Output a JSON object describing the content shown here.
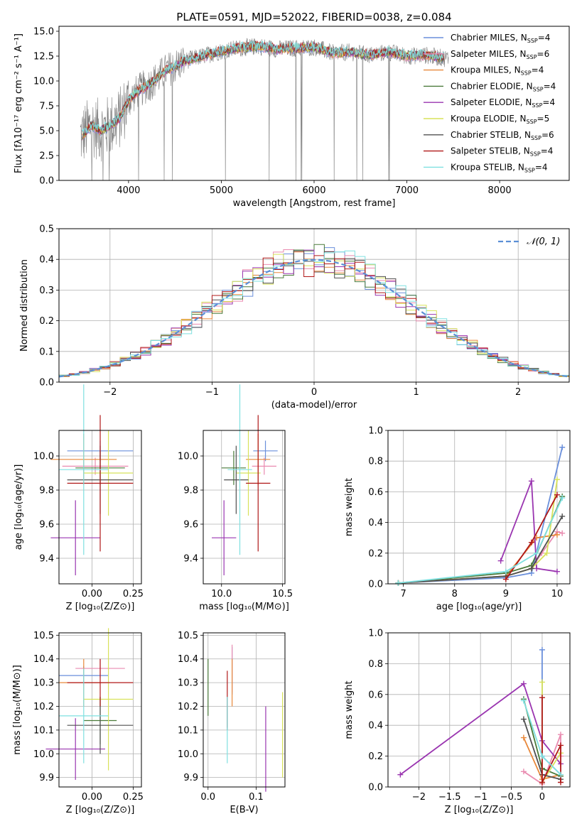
{
  "figure": {
    "title": "PLATE=0591, MJD=52022, FIBERID=0038, z=0.084"
  },
  "colors": {
    "Chabrier MILES": "#6a8fdb",
    "Salpeter MILES": "#e98bb0",
    "Kroupa MILES": "#e8883a",
    "Chabrier ELODIE": "#4a7a3a",
    "Salpeter ELODIE": "#9a35b0",
    "Kroupa ELODIE": "#d8e25a",
    "Chabrier STELIB": "#505050",
    "Salpeter STELIB": "#b01818",
    "Kroupa STELIB": "#7fe0e0",
    "spectrum_grey": "#808080",
    "grid": "#b0b0b0",
    "normal_curve": "#5b8fd6"
  },
  "models": [
    "Chabrier MILES",
    "Salpeter MILES",
    "Kroupa MILES",
    "Chabrier ELODIE",
    "Salpeter ELODIE",
    "Kroupa ELODIE",
    "Chabrier STELIB",
    "Salpeter STELIB",
    "Kroupa STELIB"
  ],
  "chart_data": [
    {
      "id": "spectrum",
      "type": "line",
      "xlabel": "wavelength [Angstrom, rest frame]",
      "ylabel": "Flux [fλ10⁻¹⁷ erg cm⁻² s⁻¹ A⁻¹]",
      "xlim": [
        3250,
        8750
      ],
      "ylim": [
        0,
        15.5
      ],
      "xticks": [
        4000,
        5000,
        6000,
        7000,
        8000
      ],
      "yticks": [
        0.0,
        2.5,
        5.0,
        7.5,
        10.0,
        12.5,
        15.0
      ],
      "grid": false,
      "legend_position": "right",
      "legend": [
        {
          "label": "Chabrier MILES, N",
          "sub": "SSP",
          "tail": "=4"
        },
        {
          "label": "Salpeter MILES, N",
          "sub": "SSP",
          "tail": "=6"
        },
        {
          "label": "Kroupa MILES, N",
          "sub": "SSP",
          "tail": "=4"
        },
        {
          "label": "Chabrier ELODIE, N",
          "sub": "SSP",
          "tail": "=4"
        },
        {
          "label": "Salpeter ELODIE, N",
          "sub": "SSP",
          "tail": "=4"
        },
        {
          "label": "Kroupa ELODIE, N",
          "sub": "SSP",
          "tail": "=5"
        },
        {
          "label": "Chabrier STELIB, N",
          "sub": "SSP",
          "tail": "=6"
        },
        {
          "label": "Salpeter STELIB, N",
          "sub": "SSP",
          "tail": "=4"
        },
        {
          "label": "Kroupa STELIB, N",
          "sub": "SSP",
          "tail": "=4"
        }
      ],
      "continuum": {
        "x": [
          3500,
          3600,
          3700,
          3800,
          3900,
          4000,
          4100,
          4200,
          4300,
          4400,
          4500,
          4600,
          4800,
          5000,
          5200,
          5400,
          5600,
          5800,
          6000,
          6200,
          6400,
          6600,
          6800,
          7000,
          7200,
          7400
        ],
        "y": [
          4.5,
          5.5,
          5.0,
          5.5,
          6.2,
          8.0,
          9.0,
          9.5,
          10.2,
          11.0,
          11.5,
          12.0,
          12.5,
          13.0,
          13.3,
          13.5,
          13.2,
          13.3,
          13.4,
          12.8,
          12.9,
          12.6,
          12.9,
          12.5,
          12.6,
          12.3
        ]
      },
      "model_range": [
        3500,
        7400
      ],
      "noise_range": [
        3480,
        7450
      ]
    },
    {
      "id": "residuals",
      "type": "step-histogram",
      "xlabel": "(data-model)/error",
      "ylabel": "Normed distribution",
      "xlim": [
        -2.5,
        2.5
      ],
      "ylim": [
        0,
        0.5
      ],
      "xticks": [
        -2,
        -1,
        0,
        1,
        2
      ],
      "yticks": [
        0.0,
        0.1,
        0.2,
        0.3,
        0.4,
        0.5
      ],
      "grid": true,
      "bin_edges_range": [
        -2.5,
        2.5
      ],
      "bin_count": 50,
      "reference": {
        "label": "N(0,1)",
        "mu": 0,
        "sigma": 1
      },
      "legend_position": "top-right"
    },
    {
      "id": "age-vs-z",
      "type": "scatter-errorbar",
      "xlabel": "Z [log₁₀(Z/Z⊙)]",
      "ylabel": "age  [log₁₀(age/yr)]",
      "xlim": [
        -0.2,
        0.3
      ],
      "ylim": [
        9.25,
        10.15
      ],
      "xticks": [
        0.0,
        0.25
      ],
      "xticklabels": [
        "0.00",
        "0.25"
      ],
      "yticks": [
        9.4,
        9.6,
        9.8,
        10.0
      ],
      "points": [
        {
          "model": "Chabrier MILES",
          "x": 0.05,
          "xerr": 0.2,
          "y": 10.03,
          "yerr": 0.06
        },
        {
          "model": "Salpeter MILES",
          "x": 0.02,
          "xerr": 0.2,
          "y": 9.94,
          "yerr": 0.05
        },
        {
          "model": "Kroupa MILES",
          "x": -0.05,
          "xerr": 0.2,
          "y": 9.98,
          "yerr": 0.15
        },
        {
          "model": "Chabrier ELODIE",
          "x": 0.05,
          "xerr": 0.15,
          "y": 9.93,
          "yerr": 0.1
        },
        {
          "model": "Salpeter ELODIE",
          "x": -0.1,
          "xerr": 0.15,
          "y": 9.52,
          "yerr": 0.22
        },
        {
          "model": "Kroupa ELODIE",
          "x": 0.1,
          "xerr": 0.15,
          "y": 9.9,
          "yerr": 0.25
        },
        {
          "model": "Chabrier STELIB",
          "x": 0.05,
          "xerr": 0.2,
          "y": 9.86,
          "yerr": 0.2
        },
        {
          "model": "Salpeter STELIB",
          "x": 0.05,
          "xerr": 0.2,
          "y": 9.84,
          "yerr": 0.4
        },
        {
          "model": "Kroupa STELIB",
          "x": -0.05,
          "xerr": 0.15,
          "y": 9.92,
          "yerr": 0.5
        }
      ]
    },
    {
      "id": "age-vs-mass",
      "type": "scatter-errorbar",
      "xlabel": "mass [log₁₀(M/M⊙)]",
      "ylabel": "",
      "xlim": [
        9.85,
        10.52
      ],
      "ylim": [
        9.25,
        10.15
      ],
      "xticks": [
        10.0,
        10.5
      ],
      "xticklabels": [
        "10.0",
        "10.5"
      ],
      "yticks": [
        9.4,
        9.6,
        9.8,
        10.0
      ],
      "points": [
        {
          "model": "Chabrier MILES",
          "x": 10.36,
          "xerr": 0.1,
          "y": 10.03,
          "yerr": 0.06
        },
        {
          "model": "Salpeter MILES",
          "x": 10.35,
          "xerr": 0.1,
          "y": 9.94,
          "yerr": 0.05
        },
        {
          "model": "Kroupa MILES",
          "x": 10.3,
          "xerr": 0.1,
          "y": 9.98,
          "yerr": 0.15
        },
        {
          "model": "Chabrier ELODIE",
          "x": 10.1,
          "xerr": 0.1,
          "y": 9.93,
          "yerr": 0.1
        },
        {
          "model": "Salpeter ELODIE",
          "x": 10.02,
          "xerr": 0.1,
          "y": 9.52,
          "yerr": 0.22
        },
        {
          "model": "Kroupa ELODIE",
          "x": 10.22,
          "xerr": 0.1,
          "y": 9.9,
          "yerr": 0.25
        },
        {
          "model": "Chabrier STELIB",
          "x": 10.12,
          "xerr": 0.1,
          "y": 9.86,
          "yerr": 0.2
        },
        {
          "model": "Salpeter STELIB",
          "x": 10.3,
          "xerr": 0.1,
          "y": 9.84,
          "yerr": 0.4
        },
        {
          "model": "Kroupa STELIB",
          "x": 10.15,
          "xerr": 0.1,
          "y": 9.92,
          "yerr": 0.5
        }
      ]
    },
    {
      "id": "weight-vs-age",
      "type": "line",
      "xlabel": "age  [log₁₀(age/yr)]",
      "ylabel": "mass weight",
      "xlim": [
        6.7,
        10.25
      ],
      "ylim": [
        0,
        1.0
      ],
      "xticks": [
        7,
        8,
        9,
        10
      ],
      "yticks": [
        0.0,
        0.2,
        0.4,
        0.6,
        0.8,
        1.0
      ],
      "grid": true,
      "series": [
        {
          "model": "Chabrier MILES",
          "x": [
            6.9,
            9.0,
            9.5,
            10.1
          ],
          "y": [
            0.005,
            0.04,
            0.07,
            0.89
          ]
        },
        {
          "model": "Salpeter MILES",
          "x": [
            6.9,
            9.0,
            9.5,
            9.7,
            10.0,
            10.1
          ],
          "y": [
            0.005,
            0.05,
            0.1,
            0.2,
            0.34,
            0.33
          ]
        },
        {
          "model": "Kroupa MILES",
          "x": [
            6.9,
            9.0,
            9.6,
            10.0
          ],
          "y": [
            0.005,
            0.05,
            0.3,
            0.32
          ]
        },
        {
          "model": "Chabrier ELODIE",
          "x": [
            6.9,
            9.0,
            9.5,
            10.1
          ],
          "y": [
            0.005,
            0.07,
            0.12,
            0.57
          ]
        },
        {
          "model": "Salpeter ELODIE",
          "x": [
            8.9,
            9.5,
            9.6,
            10.0
          ],
          "y": [
            0.15,
            0.67,
            0.1,
            0.08
          ]
        },
        {
          "model": "Kroupa ELODIE",
          "x": [
            6.9,
            9.0,
            9.5,
            9.8,
            10.0
          ],
          "y": [
            0.005,
            0.05,
            0.1,
            0.2,
            0.68
          ]
        },
        {
          "model": "Chabrier STELIB",
          "x": [
            6.9,
            9.0,
            9.5,
            10.1
          ],
          "y": [
            0.005,
            0.05,
            0.1,
            0.44
          ]
        },
        {
          "model": "Salpeter STELIB",
          "x": [
            9.0,
            9.5,
            10.0
          ],
          "y": [
            0.03,
            0.27,
            0.58
          ]
        },
        {
          "model": "Kroupa STELIB",
          "x": [
            6.9,
            9.0,
            9.6,
            10.1
          ],
          "y": [
            0.005,
            0.08,
            0.2,
            0.56
          ]
        }
      ]
    },
    {
      "id": "mass-vs-z",
      "type": "scatter-errorbar",
      "xlabel": "Z [log₁₀(Z/Z⊙)]",
      "ylabel": "mass [log₁₀(M/M⊙)]",
      "xlim": [
        -0.2,
        0.3
      ],
      "ylim": [
        9.86,
        10.51
      ],
      "xticks": [
        0.0,
        0.25
      ],
      "xticklabels": [
        "0.00",
        "0.25"
      ],
      "yticks": [
        9.9,
        10.0,
        10.1,
        10.2,
        10.3,
        10.4,
        10.5
      ],
      "points": [
        {
          "model": "Chabrier MILES",
          "x": -0.05,
          "xerr": 0.15,
          "y": 10.33,
          "yerr": 0.04
        },
        {
          "model": "Salpeter MILES",
          "x": 0.05,
          "xerr": 0.15,
          "y": 10.36,
          "yerr": 0.04
        },
        {
          "model": "Kroupa MILES",
          "x": -0.05,
          "xerr": 0.15,
          "y": 10.3,
          "yerr": 0.1
        },
        {
          "model": "Chabrier ELODIE",
          "x": 0.05,
          "xerr": 0.1,
          "y": 10.14,
          "yerr": 0.1
        },
        {
          "model": "Salpeter ELODIE",
          "x": -0.1,
          "xerr": 0.18,
          "y": 10.02,
          "yerr": 0.13
        },
        {
          "model": "Kroupa ELODIE",
          "x": 0.1,
          "xerr": 0.15,
          "y": 10.23,
          "yerr": 0.3
        },
        {
          "model": "Chabrier STELIB",
          "x": 0.05,
          "xerr": 0.2,
          "y": 10.12,
          "yerr": 0.12
        },
        {
          "model": "Salpeter STELIB",
          "x": 0.05,
          "xerr": 0.2,
          "y": 10.3,
          "yerr": 0.1
        },
        {
          "model": "Kroupa STELIB",
          "x": -0.05,
          "xerr": 0.15,
          "y": 10.16,
          "yerr": 0.2
        }
      ]
    },
    {
      "id": "mass-vs-ebv",
      "type": "scatter-errorbar",
      "xlabel": "E(B-V)",
      "ylabel": "",
      "xlim": [
        -0.01,
        0.16
      ],
      "ylim": [
        9.86,
        10.51
      ],
      "xticks": [
        0.0,
        0.1
      ],
      "xticklabels": [
        "0.0",
        "0.1"
      ],
      "yticks": [
        9.9,
        10.0,
        10.1,
        10.2,
        10.3,
        10.4,
        10.5
      ],
      "points": [
        {
          "model": "Chabrier MILES",
          "x": 0.05,
          "xerr": 0,
          "y": 10.35,
          "yerr": 0.1
        },
        {
          "model": "Salpeter MILES",
          "x": 0.05,
          "xerr": 0,
          "y": 10.36,
          "yerr": 0.1
        },
        {
          "model": "Kroupa MILES",
          "x": 0.05,
          "xerr": 0,
          "y": 10.3,
          "yerr": 0.1
        },
        {
          "model": "Chabrier ELODIE",
          "x": 0.0,
          "xerr": 0,
          "y": 10.28,
          "yerr": 0.12
        },
        {
          "model": "Salpeter ELODIE",
          "x": 0.12,
          "xerr": 0,
          "y": 10.02,
          "yerr": 0.18
        },
        {
          "model": "Kroupa ELODIE",
          "x": 0.155,
          "xerr": 0,
          "y": 10.08,
          "yerr": 0.18
        },
        {
          "model": "Chabrier STELIB",
          "x": 0.04,
          "xerr": 0,
          "y": 10.17,
          "yerr": 0.07
        },
        {
          "model": "Salpeter STELIB",
          "x": 0.04,
          "xerr": 0,
          "y": 10.23,
          "yerr": 0.12
        },
        {
          "model": "Kroupa STELIB",
          "x": 0.04,
          "xerr": 0,
          "y": 10.1,
          "yerr": 0.14
        }
      ]
    },
    {
      "id": "weight-vs-z",
      "type": "line",
      "xlabel": "Z [log₁₀(Z/Z⊙)]",
      "ylabel": "mass weight",
      "xlim": [
        -2.5,
        0.45
      ],
      "ylim": [
        0,
        1.0
      ],
      "xticks": [
        -2.0,
        -1.5,
        -1.0,
        -0.5,
        0.0
      ],
      "yticks": [
        0.0,
        0.2,
        0.4,
        0.6,
        0.8,
        1.0
      ],
      "grid": true,
      "series": [
        {
          "model": "Chabrier MILES",
          "x": [
            0.0,
            0.0,
            0.3
          ],
          "y": [
            0.89,
            0.2,
            0.08
          ]
        },
        {
          "model": "Salpeter MILES",
          "x": [
            -0.3,
            0.0,
            0.3,
            0.3
          ],
          "y": [
            0.1,
            0.02,
            0.34,
            0.2
          ]
        },
        {
          "model": "Kroupa MILES",
          "x": [
            -0.3,
            0.0,
            0.3
          ],
          "y": [
            0.32,
            0.05,
            0.08
          ]
        },
        {
          "model": "Chabrier ELODIE",
          "x": [
            -0.3,
            0.0,
            0.3
          ],
          "y": [
            0.57,
            0.12,
            0.07
          ]
        },
        {
          "model": "Salpeter ELODIE",
          "x": [
            -2.3,
            -0.3,
            0.0,
            0.3
          ],
          "y": [
            0.08,
            0.67,
            0.3,
            0.15
          ]
        },
        {
          "model": "Kroupa ELODIE",
          "x": [
            0.0,
            0.0,
            0.3
          ],
          "y": [
            0.68,
            0.03,
            0.22
          ]
        },
        {
          "model": "Chabrier STELIB",
          "x": [
            -0.3,
            0.0,
            0.3
          ],
          "y": [
            0.44,
            0.08,
            0.05
          ]
        },
        {
          "model": "Salpeter STELIB",
          "x": [
            0.0,
            0.0,
            0.3,
            0.3
          ],
          "y": [
            0.58,
            0.03,
            0.27,
            0.03
          ]
        },
        {
          "model": "Kroupa STELIB",
          "x": [
            -0.3,
            0.0,
            0.3
          ],
          "y": [
            0.56,
            0.2,
            0.08
          ]
        }
      ]
    }
  ]
}
